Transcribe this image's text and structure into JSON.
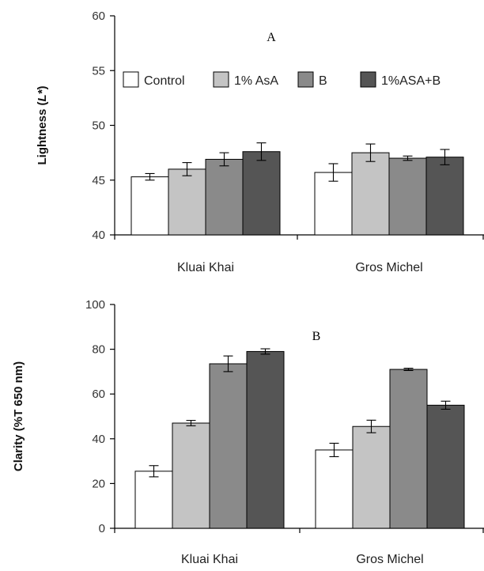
{
  "chart_data": [
    {
      "type": "bar",
      "panel": "A",
      "ylabel": "Lightness (L*)",
      "ylabel_prefix": "Lightness (",
      "ylabel_italic": "L*",
      "ylabel_suffix": ")",
      "ylim": [
        40,
        60
      ],
      "yticks": [
        40,
        45,
        50,
        55,
        60
      ],
      "grid": false,
      "legend_position": "top",
      "categories": [
        "Kluai Khai",
        "Gros Michel"
      ],
      "series": [
        {
          "name": "Control",
          "color": "#ffffff",
          "values": [
            45.3,
            45.7
          ],
          "errors": [
            0.3,
            0.8
          ]
        },
        {
          "name": "1% AsA",
          "color": "#c4c4c4",
          "values": [
            46.0,
            47.5
          ],
          "errors": [
            0.6,
            0.8
          ]
        },
        {
          "name": "B",
          "color": "#8a8a8a",
          "values": [
            46.9,
            47.0
          ],
          "errors": [
            0.6,
            0.2
          ]
        },
        {
          "name": "1%ASA+B",
          "color": "#555555",
          "values": [
            47.6,
            47.1
          ],
          "errors": [
            0.8,
            0.7
          ]
        }
      ]
    },
    {
      "type": "bar",
      "panel": "B",
      "ylabel": "Clarity  (%T 650 nm)",
      "ylim": [
        0,
        100
      ],
      "yticks": [
        0,
        20,
        40,
        60,
        80,
        100
      ],
      "grid": false,
      "categories": [
        "Kluai Khai",
        "Gros Michel"
      ],
      "series": [
        {
          "name": "Control",
          "color": "#ffffff",
          "values": [
            25.5,
            35.0
          ],
          "errors": [
            2.5,
            3.0
          ]
        },
        {
          "name": "1% AsA",
          "color": "#c4c4c4",
          "values": [
            47.0,
            45.5
          ],
          "errors": [
            1.2,
            2.8
          ]
        },
        {
          "name": "B",
          "color": "#8a8a8a",
          "values": [
            73.5,
            71.0
          ],
          "errors": [
            3.5,
            0.5
          ]
        },
        {
          "name": "1%ASA+B",
          "color": "#555555",
          "values": [
            79.0,
            55.0
          ],
          "errors": [
            1.2,
            1.8
          ]
        }
      ]
    }
  ]
}
